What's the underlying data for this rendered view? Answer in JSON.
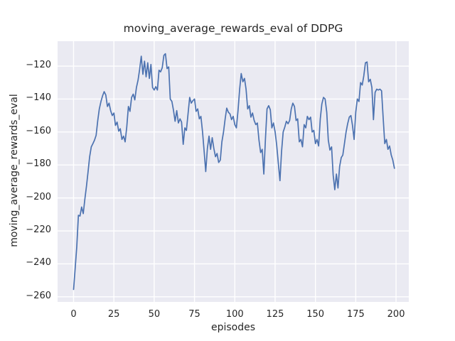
{
  "chart_data": {
    "type": "line",
    "title": "moving_average_rewards_eval of DDPG",
    "xlabel": "episodes",
    "ylabel": "moving_average_rewards_eval",
    "x_start": 0,
    "x_step": 1,
    "values": [
      -255.5,
      -243,
      -229.5,
      -210.5,
      -211,
      -205.5,
      -209.5,
      -201,
      -193,
      -184,
      -175,
      -169,
      -167,
      -165,
      -162,
      -153,
      -146,
      -141.5,
      -138,
      -135.5,
      -137.5,
      -144.5,
      -142.5,
      -147,
      -150,
      -148.5,
      -156,
      -154,
      -159.5,
      -158,
      -164.5,
      -162.5,
      -166,
      -157,
      -144.5,
      -147.5,
      -139,
      -137,
      -140.5,
      -133,
      -128.5,
      -122,
      -114,
      -125,
      -117,
      -126.5,
      -118,
      -127.5,
      -119,
      -133,
      -134.5,
      -132.5,
      -134.5,
      -122.5,
      -123.5,
      -121,
      -113.5,
      -112.5,
      -121.5,
      -120.5,
      -140,
      -141.5,
      -147,
      -153.5,
      -147,
      -154.5,
      -152,
      -154,
      -167.5,
      -157.5,
      -159,
      -149,
      -139,
      -142.5,
      -141,
      -140,
      -147.5,
      -146,
      -152,
      -150.5,
      -160,
      -172,
      -184,
      -170,
      -162.5,
      -170.5,
      -163.5,
      -170,
      -175,
      -173,
      -178.5,
      -177,
      -166,
      -160,
      -152,
      -145.5,
      -148,
      -149,
      -152.5,
      -150.5,
      -155.5,
      -157.5,
      -147,
      -134,
      -124.5,
      -129.5,
      -127.5,
      -134,
      -146,
      -144,
      -151,
      -148.5,
      -153,
      -155.5,
      -154.5,
      -165,
      -172.5,
      -170.5,
      -185.5,
      -164,
      -146,
      -144,
      -146.5,
      -157.5,
      -154.5,
      -160,
      -168,
      -179,
      -189.5,
      -172,
      -160,
      -157,
      -153.5,
      -155,
      -153,
      -146,
      -142.5,
      -144.5,
      -153,
      -152,
      -166,
      -164.5,
      -169,
      -155.5,
      -157.5,
      -150.5,
      -152.5,
      -151,
      -160,
      -159,
      -167,
      -164.5,
      -168.5,
      -152,
      -143,
      -139,
      -140,
      -148,
      -165,
      -171,
      -169,
      -186,
      -195,
      -185.5,
      -194,
      -181,
      -175.5,
      -174,
      -167,
      -160,
      -155,
      -151,
      -150,
      -156,
      -164.5,
      -148,
      -140,
      -141.5,
      -130,
      -131.5,
      -126,
      -118,
      -117.5,
      -129.5,
      -128,
      -133,
      -152.5,
      -136,
      -134,
      -134.5,
      -134,
      -135,
      -151,
      -167,
      -164.5,
      -170.5,
      -168.5,
      -174,
      -177,
      -182
    ],
    "xticks": [
      0,
      25,
      50,
      75,
      100,
      125,
      150,
      175,
      200
    ],
    "yticks": [
      -120,
      -140,
      -160,
      -180,
      -200,
      -220,
      -240,
      -260
    ],
    "xlim": [
      -9.9,
      207.9
    ],
    "ylim": [
      -263.1,
      -104.9
    ],
    "grid": true,
    "legend_position": "none",
    "line_color": "#4C72B0",
    "axes_background": "#EAEAF2",
    "grid_color": "#FFFFFF",
    "text_color": "#262626"
  }
}
